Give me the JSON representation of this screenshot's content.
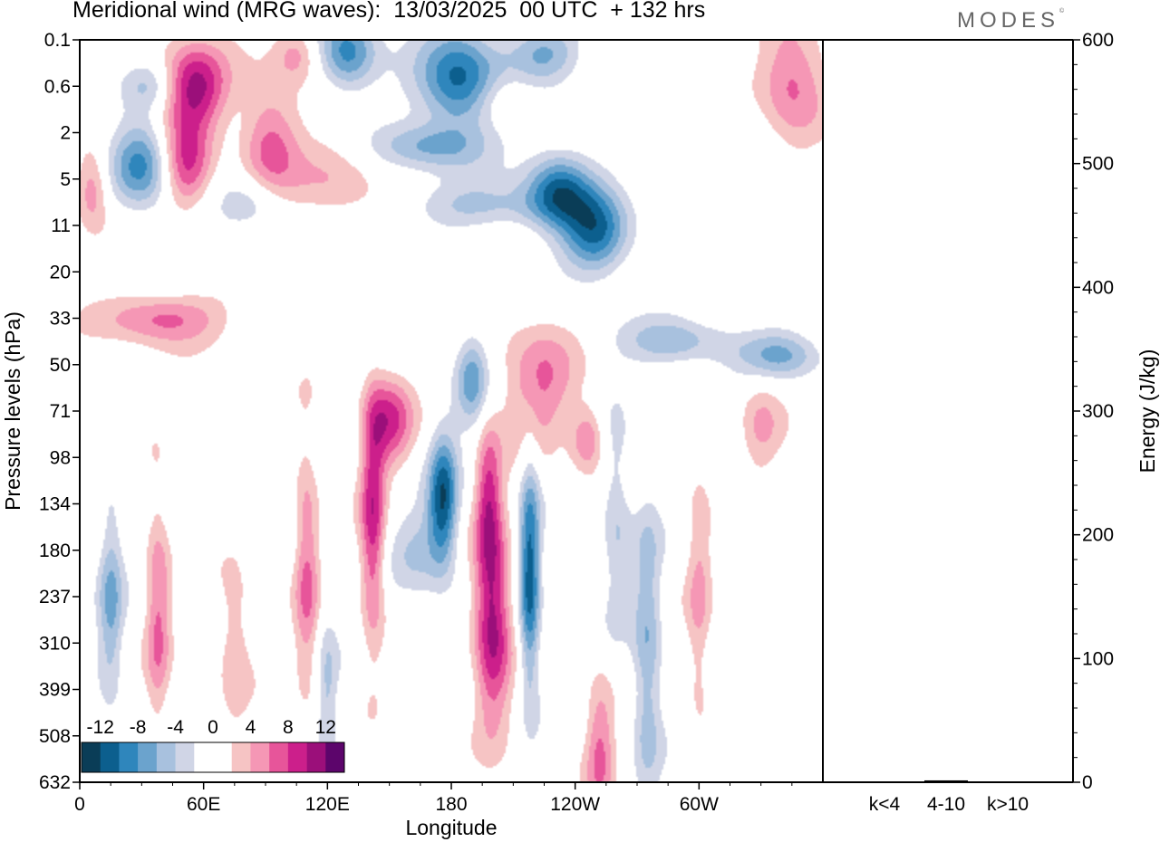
{
  "header": {
    "title": "Meridional wind (MRG waves):  13/03/2025  00 UTC  + 132 hrs",
    "logo": "MODES",
    "logo_mark": "©"
  },
  "chart_data": [
    {
      "type": "heatmap",
      "xlabel": "Longitude",
      "ylabel": "Pressure levels (hPa)",
      "x_ticks": [
        "0",
        "60E",
        "120E",
        "180",
        "120W",
        "60W"
      ],
      "y_ticks": [
        "0.1",
        "0.6",
        "2",
        "5",
        "11",
        "20",
        "33",
        "50",
        "71",
        "98",
        "134",
        "180",
        "237",
        "310",
        "399",
        "508",
        "632"
      ],
      "colorbar": {
        "labels": [
          "-12",
          "-8",
          "-4",
          "0",
          "4",
          "8",
          "12"
        ],
        "colors": [
          "#0a3d57",
          "#0c5f8e",
          "#2f86bc",
          "#6ba3cd",
          "#a8c1de",
          "#d0d5e6",
          "#ffffff",
          "#ffffff",
          "#f6c4c4",
          "#f597b5",
          "#e7559a",
          "#cc1f8b",
          "#9b0f7a",
          "#5c056b"
        ]
      },
      "features": [
        {
          "lon": 55,
          "lev": 1.0,
          "w": 16,
          "h": 0.9,
          "v": 11
        },
        {
          "lon": 30,
          "lev": 2.7,
          "w": 14,
          "h": 0.9,
          "v": -9
        },
        {
          "lon": 52,
          "lev": 2.7,
          "w": 12,
          "h": 1.0,
          "v": 8
        },
        {
          "lon": 92,
          "lev": 2.2,
          "w": 14,
          "h": 1.3,
          "v": 7
        },
        {
          "lon": 105,
          "lev": 0.3,
          "w": 11,
          "h": 0.6,
          "v": 5
        },
        {
          "lon": 130,
          "lev": 0.3,
          "w": 14,
          "h": 0.8,
          "v": -9
        },
        {
          "lon": 185,
          "lev": 0.9,
          "w": 20,
          "h": 1.1,
          "v": -11
        },
        {
          "lon": 170,
          "lev": 2.3,
          "w": 26,
          "h": 0.5,
          "v": -6
        },
        {
          "lon": 225,
          "lev": 0.3,
          "w": 18,
          "h": 0.6,
          "v": -6
        },
        {
          "lon": 232,
          "lev": 3.2,
          "w": 16,
          "h": 0.8,
          "v": -10
        },
        {
          "lon": 250,
          "lev": 4.2,
          "w": 16,
          "h": 0.9,
          "v": -10
        },
        {
          "lon": 345,
          "lev": 0.8,
          "w": 16,
          "h": 1.3,
          "v": 7
        },
        {
          "lon": 6,
          "lev": 3.2,
          "w": 8,
          "h": 0.9,
          "v": 6
        },
        {
          "lon": 125,
          "lev": 3.0,
          "w": 22,
          "h": 0.9,
          "v": 4
        },
        {
          "lon": 40,
          "lev": 6.0,
          "w": 28,
          "h": 0.55,
          "v": 7
        },
        {
          "lon": 150,
          "lev": 8.2,
          "w": 11,
          "h": 1.0,
          "v": 8
        },
        {
          "lon": 190,
          "lev": 7.3,
          "w": 8,
          "h": 1.0,
          "v": -7
        },
        {
          "lon": 222,
          "lev": 7.4,
          "w": 18,
          "h": 1.4,
          "v": 6
        },
        {
          "lon": 246,
          "lev": 8.6,
          "w": 8,
          "h": 0.7,
          "v": 6
        },
        {
          "lon": 176,
          "lev": 9.9,
          "w": 7,
          "h": 1.4,
          "v": -11
        },
        {
          "lon": 198,
          "lev": 9.8,
          "w": 6,
          "h": 1.6,
          "v": 7
        },
        {
          "lon": 142,
          "lev": 10.4,
          "w": 6,
          "h": 2.6,
          "v": 9
        },
        {
          "lon": 110,
          "lev": 11.4,
          "w": 6,
          "h": 2.8,
          "v": 6
        },
        {
          "lon": 200,
          "lev": 12.5,
          "w": 9,
          "h": 2.2,
          "v": 11
        },
        {
          "lon": 218,
          "lev": 11.6,
          "w": 5,
          "h": 2.5,
          "v": -11
        },
        {
          "lon": 38,
          "lev": 12.3,
          "w": 6,
          "h": 2.6,
          "v": 6
        },
        {
          "lon": 15,
          "lev": 12.1,
          "w": 6,
          "h": 2.2,
          "v": -6
        },
        {
          "lon": 75,
          "lev": 12.9,
          "w": 8,
          "h": 1.8,
          "v": 4
        },
        {
          "lon": 275,
          "lev": 13.2,
          "w": 7,
          "h": 3.2,
          "v": -6
        },
        {
          "lon": 300,
          "lev": 12.0,
          "w": 6,
          "h": 3.2,
          "v": 4
        },
        {
          "lon": 252,
          "lev": 15.3,
          "w": 7,
          "h": 1.6,
          "v": 6
        },
        {
          "lon": 290,
          "lev": 6.5,
          "w": 26,
          "h": 0.5,
          "v": -5
        },
        {
          "lon": 340,
          "lev": 6.8,
          "w": 20,
          "h": 0.5,
          "v": -6
        },
        {
          "lon": 330,
          "lev": 8.3,
          "w": 10,
          "h": 1.0,
          "v": 4
        },
        {
          "lon": 165,
          "lev": 11.0,
          "w": 14,
          "h": 1.0,
          "v": -4
        },
        {
          "lon": 260,
          "lev": 10.3,
          "w": 7,
          "h": 2.3,
          "v": -4
        },
        {
          "lon": 120,
          "lev": 14.3,
          "w": 5,
          "h": 2.0,
          "v": -4
        },
        {
          "lon": 195,
          "lev": 3.6,
          "w": 45,
          "h": 0.5,
          "v": -4
        },
        {
          "lon": 205,
          "lev": 1.3,
          "w": 16,
          "h": 0.6,
          "v": 4
        },
        {
          "lon": 85,
          "lev": 3.5,
          "w": 16,
          "h": 0.6,
          "v": -4
        },
        {
          "lon": 35,
          "lev": 1.0,
          "w": 14,
          "h": 0.5,
          "v": -4
        }
      ]
    },
    {
      "type": "bar",
      "categories": [
        "k<4",
        "4-10",
        "k>10"
      ],
      "values": [
        0.5,
        1.5,
        0.3
      ],
      "ylabel": "Energy (J/kg)",
      "ylim": [
        0,
        600
      ],
      "y_ticks": [
        0,
        100,
        200,
        300,
        400,
        500,
        600
      ]
    }
  ]
}
